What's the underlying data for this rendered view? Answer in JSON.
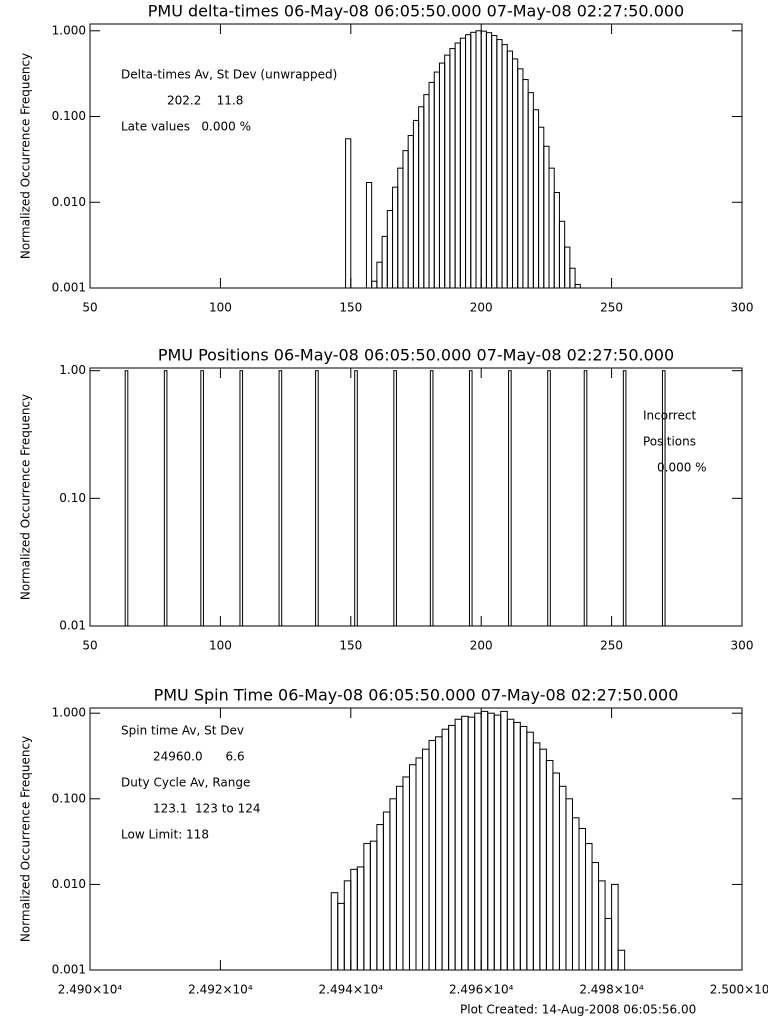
{
  "chart_data": [
    {
      "type": "histogram",
      "title": "PMU delta-times 06-May-08 06:05:50.000 07-May-08 02:27:50.000",
      "y_label": "Normalized Occurrence Frequency",
      "log_y": true,
      "color": "#000000",
      "xlim": [
        50,
        300
      ],
      "xticks": [
        50,
        100,
        150,
        200,
        250,
        300
      ],
      "ylim": [
        0.001,
        1.2
      ],
      "yticks": [
        0.001,
        {
          "value": 0.01,
          "label": "0.010"
        },
        {
          "value": 0.1,
          "label": "0.100"
        },
        {
          "value": 1,
          "label": "1.000"
        }
      ],
      "bins": [
        148,
        150,
        152,
        154,
        156,
        158,
        160,
        162,
        164,
        166,
        168,
        170,
        172,
        174,
        176,
        178,
        180,
        182,
        184,
        186,
        188,
        190,
        192,
        194,
        196,
        198,
        200,
        202,
        204,
        206,
        208,
        210,
        212,
        214,
        216,
        218,
        220,
        222,
        224,
        226,
        228,
        230,
        232,
        234,
        236,
        238
      ],
      "values": [
        0.055,
        null,
        null,
        null,
        0.017,
        0.0012,
        0.002,
        0.004,
        0.008,
        0.015,
        0.025,
        0.04,
        0.06,
        0.09,
        0.13,
        0.18,
        0.25,
        0.33,
        0.42,
        0.52,
        0.62,
        0.72,
        0.82,
        0.9,
        0.96,
        1.0,
        0.99,
        0.95,
        0.88,
        0.79,
        0.69,
        0.58,
        0.47,
        0.36,
        0.27,
        0.19,
        0.12,
        0.075,
        0.045,
        0.025,
        0.013,
        0.006,
        0.003,
        0.0017,
        0.0011
      ],
      "annotations": [
        "Delta-times Av, St Dev (unwrapped)",
        "202.2    11.8",
        "Late values   0.000 %"
      ]
    },
    {
      "type": "bar",
      "title": "PMU Positions 06-May-08 06:05:50.000 07-May-08 02:27:50.000",
      "y_label": "Normalized Occurrence Frequency",
      "log_y": true,
      "color": "#000000",
      "xlim": [
        50,
        300
      ],
      "xticks": [
        50,
        100,
        150,
        200,
        250,
        300
      ],
      "ylim": [
        0.01,
        1.05
      ],
      "yticks": [
        0.01,
        {
          "value": 0.1,
          "label": "0.10"
        },
        {
          "value": 1,
          "label": "1.00"
        }
      ],
      "x": [
        64,
        79,
        93,
        108,
        123,
        137,
        152,
        167,
        181,
        196,
        211,
        226,
        240,
        255,
        270
      ],
      "values": [
        1,
        1,
        1,
        1,
        1,
        1,
        1,
        1,
        1,
        1,
        1,
        1,
        1,
        1,
        1
      ],
      "annotations": [
        "Incorrect",
        "Positions",
        "0.000 %"
      ]
    },
    {
      "type": "histogram",
      "title": "PMU Spin Time 06-May-08 06:05:50.000 07-May-08 02:27:50.000",
      "y_label": "Normalized Occurrence Frequency",
      "log_y": true,
      "color": "#000000",
      "xlim": [
        24900,
        25000
      ],
      "xticks": [
        {
          "value": 24900,
          "label": "2.490×10⁴"
        },
        {
          "value": 24920,
          "label": "2.492×10⁴"
        },
        {
          "value": 24940,
          "label": "2.494×10⁴"
        },
        {
          "value": 24960,
          "label": "2.496×10⁴"
        },
        {
          "value": 24980,
          "label": "2.498×10⁴"
        },
        {
          "value": 25000,
          "label": "2.500×10⁴"
        }
      ],
      "ylim": [
        0.001,
        1.15
      ],
      "yticks": [
        0.001,
        {
          "value": 0.01,
          "label": "0.010"
        },
        {
          "value": 0.1,
          "label": "0.100"
        },
        {
          "value": 1,
          "label": "1.000"
        }
      ],
      "bins": [
        24937,
        24938,
        24939,
        24940,
        24941,
        24942,
        24943,
        24944,
        24945,
        24946,
        24947,
        24948,
        24949,
        24950,
        24951,
        24952,
        24953,
        24954,
        24955,
        24956,
        24957,
        24958,
        24959,
        24960,
        24961,
        24962,
        24963,
        24964,
        24965,
        24966,
        24967,
        24968,
        24969,
        24970,
        24971,
        24972,
        24973,
        24974,
        24975,
        24976,
        24977,
        24978,
        24979,
        24980,
        24981,
        24982
      ],
      "values": [
        0.008,
        0.006,
        0.011,
        0.015,
        0.016,
        0.03,
        0.032,
        0.05,
        0.07,
        0.1,
        0.14,
        0.18,
        0.25,
        0.3,
        0.38,
        0.48,
        0.53,
        0.65,
        0.72,
        0.85,
        0.92,
        0.9,
        1.0,
        1.05,
        1.0,
        0.95,
        1.05,
        0.85,
        0.78,
        0.7,
        0.6,
        0.45,
        0.38,
        0.28,
        0.2,
        0.14,
        0.1,
        0.06,
        0.045,
        0.03,
        0.018,
        0.011,
        0.004,
        0.01,
        0.0017
      ],
      "annotations": [
        "Spin time Av, St Dev",
        "24960.0      6.6",
        "Duty Cycle Av, Range",
        "123.1  123 to 124",
        "Low Limit: 118"
      ]
    }
  ],
  "footer": "Plot Created: 14-Aug-2008 06:05:56.00"
}
